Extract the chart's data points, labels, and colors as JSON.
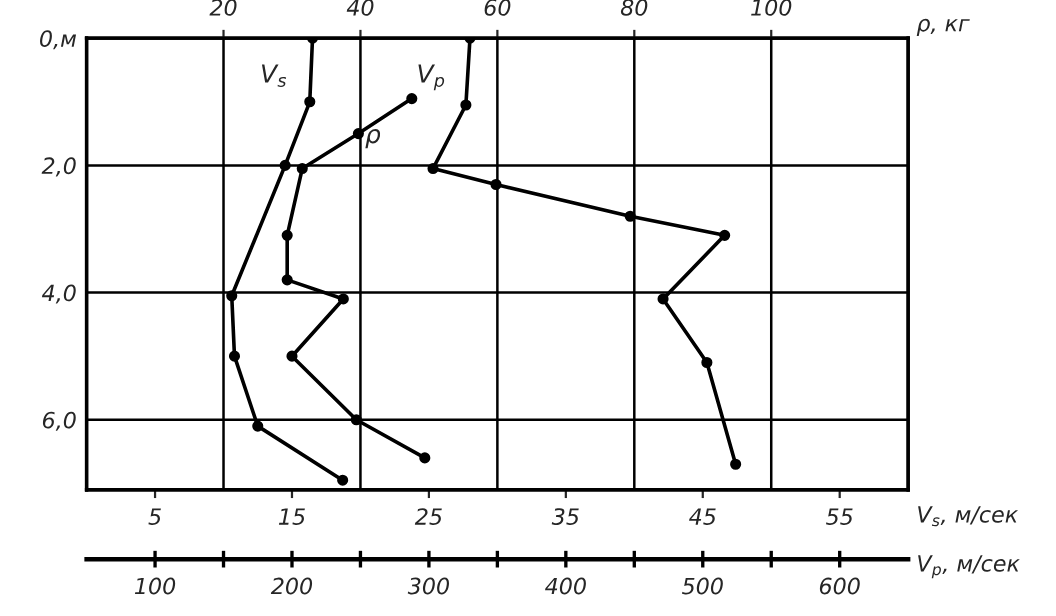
{
  "chart_data": [
    {
      "type": "line",
      "ylim": [
        7.1,
        0
      ],
      "yticks": [
        {
          "value": 0,
          "label": "0,м"
        },
        {
          "value": 2,
          "label": "2,0"
        },
        {
          "value": 4,
          "label": "4,0"
        },
        {
          "value": 6,
          "label": "6,0"
        }
      ],
      "xlim": [
        0,
        60
      ],
      "xticks": [
        5,
        15,
        25,
        35,
        45,
        55
      ],
      "xlabel": "V$_{s}$, м/сек",
      "x2lim": [
        0,
        120
      ],
      "x2ticks": [
        20,
        40,
        60,
        80,
        100
      ],
      "x2label": "ρ, кг",
      "grid": true,
      "marker": "circle",
      "series": [
        {
          "name": "V$_{s}$",
          "color": "#000000",
          "x": [
            16.5,
            16.3,
            14.5,
            10.6,
            10.8,
            12.5,
            18.7
          ],
          "values": [
            0,
            1.0,
            2.0,
            4.05,
            5.0,
            6.1,
            6.95
          ]
        },
        {
          "name": "ρ",
          "axis": "x2",
          "color": "#000000",
          "x": [
            47.5,
            39.7,
            31.5,
            29.3,
            29.3,
            37.5,
            30,
            39.4,
            49.4
          ],
          "values": [
            0.95,
            1.5,
            2.05,
            3.1,
            3.8,
            4.1,
            5.0,
            6.0,
            6.6
          ]
        }
      ]
    },
    {
      "type": "line",
      "ylim": [
        7.1,
        0
      ],
      "tick_labels": "x",
      "xlim": [
        50,
        650
      ],
      "xticks": [
        100,
        {
          "value": 150,
          "label": null
        },
        200,
        {
          "value": 250,
          "label": null
        },
        300,
        {
          "value": 350,
          "label": null
        },
        400,
        {
          "value": 450,
          "label": null
        },
        500,
        {
          "value": 550,
          "label": null
        },
        600
      ],
      "xlabel": "V$_{p}$, м/сек",
      "marker": "circle",
      "series": [
        {
          "name": "V$_{p}$",
          "color": "#000000",
          "x": [
            330,
            327,
            303,
            349,
            447,
            516,
            471,
            503,
            524
          ],
          "values": [
            0,
            1.05,
            2.05,
            2.3,
            2.8,
            3.1,
            4.1,
            5.1,
            6.7
          ]
        }
      ]
    }
  ]
}
